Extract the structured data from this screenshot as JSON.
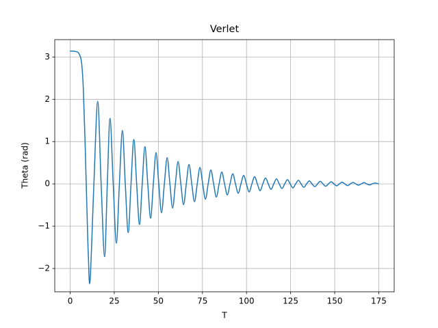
{
  "chart_data": {
    "type": "line",
    "title": "Verlet",
    "xlabel": "T",
    "ylabel": "Theta (rad)",
    "x": [
      0,
      3,
      5,
      6.5,
      7.5,
      8.5,
      9.5,
      10.3,
      11.3,
      13.45,
      15.6,
      17.55,
      19.5,
      21.05,
      22.6,
      24.4,
      26.2,
      27.9,
      29.6,
      31.25,
      32.9,
      34.5,
      36.1,
      37.7,
      39.3,
      40.85,
      42.4,
      44.0,
      45.6,
      47.15,
      48.7,
      50.25,
      51.8,
      53.4,
      55.0,
      56.55,
      58.1,
      59.65,
      61.2,
      62.75,
      64.3,
      65.85,
      67.4,
      68.95,
      70.5,
      72.05,
      73.6,
      75.15,
      76.7,
      78.25,
      79.8,
      81.35,
      82.9,
      84.45,
      86.0,
      87.55,
      89.1,
      90.65,
      92.2,
      93.75,
      95.3,
      96.85,
      98.4,
      99.95,
      101.5,
      103.05,
      104.6,
      106.15,
      107.7,
      109.25,
      110.8,
      112.35,
      113.9,
      115.45,
      117.0,
      118.55,
      120.1,
      121.65,
      123.2,
      124.75,
      126.3,
      127.85,
      129.4,
      130.95,
      132.5,
      134.05,
      135.6,
      137.15,
      138.7,
      140.25,
      141.8,
      143.35,
      144.9,
      146.45,
      148.0,
      149.55,
      151.1,
      152.65,
      154.2,
      155.75,
      157.3,
      158.85,
      160.4,
      161.95,
      163.5,
      165.05,
      166.6,
      168.15,
      169.7,
      171.25,
      172.8,
      175
    ],
    "values": [
      3.14,
      3.13,
      3.08,
      2.85,
      2.2,
      0.9,
      -0.6,
      -1.7,
      -2.28,
      0,
      1.95,
      0,
      -1.72,
      0,
      1.55,
      0,
      -1.4,
      0,
      1.26,
      0,
      -1.15,
      0,
      1.05,
      0,
      -0.96,
      0,
      0.88,
      0,
      -0.81,
      0,
      0.74,
      0,
      -0.68,
      0,
      0.62,
      0,
      -0.57,
      0,
      0.53,
      0,
      -0.49,
      0,
      0.46,
      0,
      -0.42,
      0,
      0.39,
      0,
      -0.36,
      0,
      0.33,
      0,
      -0.31,
      0,
      0.28,
      0,
      -0.26,
      0,
      0.24,
      0,
      -0.22,
      0,
      0.2,
      0,
      -0.19,
      0,
      0.17,
      0,
      -0.16,
      0,
      0.14,
      0,
      -0.13,
      0,
      0.12,
      0,
      -0.11,
      0,
      0.1,
      0,
      -0.095,
      0,
      0.085,
      0,
      -0.08,
      0,
      0.07,
      0,
      -0.065,
      0,
      0.06,
      0,
      -0.055,
      0,
      0.05,
      0,
      -0.045,
      0,
      0.04,
      0,
      -0.04,
      0,
      0.035,
      0,
      -0.03,
      0,
      0.03,
      0,
      -0.025,
      0,
      0.02,
      0
    ],
    "color": "#1f77b4",
    "xlim": [
      -8.75,
      183.75
    ],
    "xticks": [
      0,
      25,
      50,
      75,
      100,
      125,
      150,
      175
    ],
    "ylim": [
      -2.55,
      3.41
    ],
    "yticks": [
      {
        "value": -2,
        "label": "−2"
      },
      {
        "value": -1,
        "label": "−1"
      },
      0,
      1,
      2,
      3
    ],
    "grid": true
  }
}
